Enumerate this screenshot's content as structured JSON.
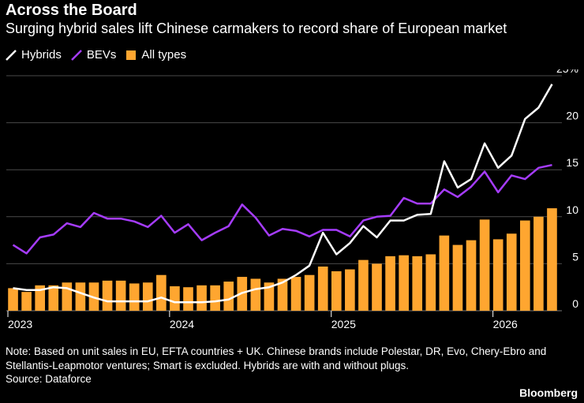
{
  "header": {
    "title": "Across the Board",
    "subtitle": "Surging hybrid sales lift Chinese carmakers to record share of European market"
  },
  "legend": {
    "hybrids": "Hybrids",
    "bevs": "BEVs",
    "all_types": "All types"
  },
  "colors": {
    "hybrids": "#ffffff",
    "bevs": "#a63cff",
    "all_types": "#ffa630",
    "grid": "#4a4a4a",
    "background": "#000000"
  },
  "chart_data": {
    "type": "bar",
    "combo": "bars with line overlays",
    "start_month": "2023-01",
    "x_tick_labels": [
      "2023",
      "2024",
      "2025",
      "2026"
    ],
    "y_tick_labels": [
      "0",
      "5",
      "10",
      "15",
      "20",
      "25%"
    ],
    "y_ticks": [
      0,
      5,
      10,
      15,
      20,
      25
    ],
    "ylim": [
      0,
      25
    ],
    "grid": true,
    "legend_position": "top-left",
    "series": [
      {
        "name": "All types",
        "kind": "bar",
        "values": [
          2.4,
          2.0,
          2.7,
          2.7,
          3.0,
          3.0,
          3.0,
          3.2,
          3.2,
          2.9,
          3.0,
          3.8,
          2.6,
          2.5,
          2.7,
          2.7,
          3.1,
          3.6,
          3.4,
          3.0,
          3.4,
          3.6,
          3.8,
          4.7,
          4.2,
          4.4,
          5.4,
          5.0,
          5.8,
          5.9,
          5.8,
          6.0,
          8.0,
          7.0,
          7.5,
          9.7,
          7.6,
          8.2,
          9.6,
          10.0,
          10.9
        ]
      },
      {
        "name": "Hybrids",
        "kind": "line",
        "values": [
          2.4,
          2.2,
          2.2,
          2.5,
          2.4,
          1.9,
          1.4,
          1.0,
          1.0,
          1.0,
          1.0,
          1.4,
          0.9,
          0.9,
          0.9,
          1.0,
          1.2,
          1.9,
          2.3,
          2.5,
          3.0,
          3.8,
          4.8,
          8.3,
          6.0,
          7.2,
          9.0,
          7.8,
          9.6,
          9.6,
          10.2,
          10.3,
          15.9,
          13.1,
          14.0,
          17.8,
          15.2,
          16.5,
          20.4,
          21.6,
          24.1
        ]
      },
      {
        "name": "BEVs",
        "kind": "line",
        "values": [
          7.0,
          6.1,
          7.8,
          8.1,
          9.3,
          8.9,
          10.4,
          9.8,
          9.8,
          9.5,
          8.9,
          10.1,
          8.3,
          9.2,
          7.5,
          8.3,
          9.0,
          11.3,
          9.9,
          8.0,
          8.7,
          8.5,
          7.9,
          8.6,
          8.6,
          7.9,
          9.6,
          10.0,
          10.1,
          12.0,
          11.4,
          11.4,
          12.9,
          12.1,
          13.2,
          14.8,
          12.6,
          14.4,
          14.0,
          15.2,
          15.5
        ]
      }
    ]
  },
  "footer": {
    "note": "Note: Based on unit sales in EU, EFTA countries + UK. Chinese brands include Polestar, DR, Evo, Chery-Ebro and Stellantis-Leapmotor ventures; Smart is excluded. Hybrids are with and without plugs.",
    "source": "Source: Dataforce",
    "brand": "Bloomberg"
  }
}
